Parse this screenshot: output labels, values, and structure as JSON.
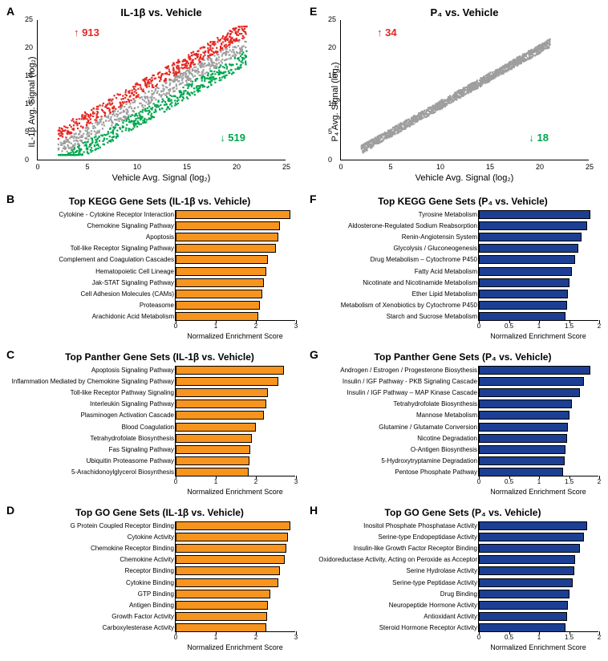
{
  "panels": {
    "A": {
      "letter": "A",
      "title": "IL-1β vs. Vehicle",
      "xlabel": "Vehicle Avg. Signal (log₂)",
      "ylabel": "IL-1β Avg. Signal (log₂)",
      "xlim": [
        0,
        25
      ],
      "ylim": [
        0,
        25
      ],
      "xticks": [
        0,
        5,
        10,
        15,
        20,
        25
      ],
      "yticks": [
        0,
        5,
        10,
        15,
        20,
        25
      ],
      "up_annot": "↑ 913",
      "down_annot": "↓ 519",
      "colors": {
        "up": "#e52620",
        "down": "#00a64f",
        "ns": "#9e9e9e"
      }
    },
    "E": {
      "letter": "E",
      "title": "P₄ vs. Vehicle",
      "xlabel": "Vehicle Avg. Signal (log₂)",
      "ylabel": "P₄ Avg. Signal (log₂)",
      "xlim": [
        0,
        25
      ],
      "ylim": [
        0,
        25
      ],
      "xticks": [
        0,
        5,
        10,
        15,
        20,
        25
      ],
      "yticks": [
        0,
        5,
        10,
        15,
        20,
        25
      ],
      "up_annot": "↑ 34",
      "down_annot": "↓ 18",
      "colors": {
        "up": "#e52620",
        "down": "#00a64f",
        "ns": "#9e9e9e"
      }
    },
    "B": {
      "letter": "B",
      "title": "Top KEGG Gene Sets (IL-1β vs. Vehicle)",
      "xlabel": "Normalized Enrichment Score",
      "xlim": [
        0,
        3
      ],
      "xticks": [
        0,
        1,
        2,
        3
      ],
      "bar_color": "#f7941e",
      "items": [
        {
          "label": "Cytokine - Cytokine Receptor Interaction",
          "v": 2.85
        },
        {
          "label": "Chemokine Signaling Pathway",
          "v": 2.6
        },
        {
          "label": "Apoptosis",
          "v": 2.55
        },
        {
          "label": "Toll-like Receptor Signaling Pathway",
          "v": 2.5
        },
        {
          "label": "Complement and Coagulation Cascades",
          "v": 2.3
        },
        {
          "label": "Hematopoietic Cell Lineage",
          "v": 2.25
        },
        {
          "label": "Jak-STAT Signaling Pathway",
          "v": 2.2
        },
        {
          "label": "Cell Adhesion Molecules (CAMs)",
          "v": 2.15
        },
        {
          "label": "Proteasome",
          "v": 2.1
        },
        {
          "label": "Arachidonic Acid Metabolism",
          "v": 2.05
        }
      ]
    },
    "F": {
      "letter": "F",
      "title": "Top KEGG Gene Sets (P₄ vs. Vehicle)",
      "xlabel": "Normalized Enrichment Score",
      "xlim": [
        0,
        2
      ],
      "xticks": [
        0,
        0.5,
        1.0,
        1.5,
        2.0
      ],
      "bar_color": "#1c3f94",
      "items": [
        {
          "label": "Tyrosine Metabolism",
          "v": 1.85
        },
        {
          "label": "Aldosterone-Regulated Sodium Reabsorption",
          "v": 1.8
        },
        {
          "label": "Renin-Angiotensin System",
          "v": 1.7
        },
        {
          "label": "Glycolysis / Gluconeogenesis",
          "v": 1.65
        },
        {
          "label": "Drug Metabolism – Cytochrome P450",
          "v": 1.6
        },
        {
          "label": "Fatty Acid Metabolism",
          "v": 1.55
        },
        {
          "label": "Nicotinate and Nicotinamide Metabolism",
          "v": 1.5
        },
        {
          "label": "Ether Lipid Metabolism",
          "v": 1.48
        },
        {
          "label": "Metabolism of Xenobiotics by Cytochrome P450",
          "v": 1.46
        },
        {
          "label": "Starch and Sucrose Metabolism",
          "v": 1.44
        }
      ]
    },
    "C": {
      "letter": "C",
      "title": "Top Panther Gene Sets (IL-1β vs. Vehicle)",
      "xlabel": "Normalized Enrichment Score",
      "xlim": [
        0,
        3
      ],
      "xticks": [
        0,
        1,
        2,
        3
      ],
      "bar_color": "#f7941e",
      "items": [
        {
          "label": "Apoptosis Signaling Pathway",
          "v": 2.7
        },
        {
          "label": "Inflammation Mediated by Chemokine Signaling Pathway",
          "v": 2.55
        },
        {
          "label": "Toll-like Receptor Pathway Signaling",
          "v": 2.3
        },
        {
          "label": "Interleukin Signaling Pathway",
          "v": 2.25
        },
        {
          "label": "Plasminogen Activation Cascade",
          "v": 2.2
        },
        {
          "label": "Blood Coagulation",
          "v": 2.0
        },
        {
          "label": "Tetrahydrofolate Biosynthesis",
          "v": 1.9
        },
        {
          "label": "Fas Signaling Pathway",
          "v": 1.85
        },
        {
          "label": "Ubiquitin Proteasome Pathway",
          "v": 1.83
        },
        {
          "label": "5-Arachidonoylglycerol Biosynthesis",
          "v": 1.81
        }
      ]
    },
    "G": {
      "letter": "G",
      "title": "Top Panther Gene Sets (P₄ vs. Vehicle)",
      "xlabel": "Normalized Enrichment Score",
      "xlim": [
        0,
        2
      ],
      "xticks": [
        0,
        0.5,
        1.0,
        1.5,
        2.0
      ],
      "bar_color": "#1c3f94",
      "items": [
        {
          "label": "Androgen / Estrogen / Progesterone Biosythesis",
          "v": 1.85
        },
        {
          "label": "Insulin / IGF Pathway - PKB Signaling Cascade",
          "v": 1.75
        },
        {
          "label": "Insulin / IGF Pathway – MAP Kinase Cascade",
          "v": 1.68
        },
        {
          "label": "Tetrahydrofolate Biosynthesis",
          "v": 1.55
        },
        {
          "label": "Mannose Metabolism",
          "v": 1.5
        },
        {
          "label": "Glutamine / Glutamate Conversion",
          "v": 1.48
        },
        {
          "label": "Nicotine Degradation",
          "v": 1.46
        },
        {
          "label": "O-Antigen Biosynthesis",
          "v": 1.44
        },
        {
          "label": "5-Hydroxytryptamine Degradation",
          "v": 1.42
        },
        {
          "label": "Pentose Phosphate Pathway",
          "v": 1.4
        }
      ]
    },
    "D": {
      "letter": "D",
      "title": "Top GO Gene Sets (IL-1β vs. Vehicle)",
      "xlabel": "Normalized Enrichment Score",
      "xlim": [
        0,
        3
      ],
      "xticks": [
        0,
        1,
        2,
        3
      ],
      "bar_color": "#f7941e",
      "items": [
        {
          "label": "G Protein Coupled Receptor Binding",
          "v": 2.85
        },
        {
          "label": "Cytokine Activity",
          "v": 2.8
        },
        {
          "label": "Chemokine Receptor Binding",
          "v": 2.75
        },
        {
          "label": "Chemokine Activity",
          "v": 2.72
        },
        {
          "label": "Receptor Binding",
          "v": 2.6
        },
        {
          "label": "Cytokine Binding",
          "v": 2.55
        },
        {
          "label": "GTP Binding",
          "v": 2.35
        },
        {
          "label": "Antigen Binding",
          "v": 2.3
        },
        {
          "label": "Growth Factor Activity",
          "v": 2.28
        },
        {
          "label": "Carboxylesterase Activity",
          "v": 2.25
        }
      ]
    },
    "H": {
      "letter": "H",
      "title": "Top GO Gene Sets (P₄ vs. Vehicle)",
      "xlabel": "Normalized Enrichment Score",
      "xlim": [
        0,
        2
      ],
      "xticks": [
        0,
        0.5,
        1.0,
        1.5,
        2.0
      ],
      "bar_color": "#1c3f94",
      "items": [
        {
          "label": "Inositol Phosphate Phosphatase Activity",
          "v": 1.8
        },
        {
          "label": "Serine-type Endopeptidase Activity",
          "v": 1.75
        },
        {
          "label": "Insulin-like Growth Factor Receptor Binding",
          "v": 1.68
        },
        {
          "label": "Oxidoreductase Activity, Acting on Peroxide as Acceptor",
          "v": 1.6
        },
        {
          "label": "Serine Hydrolase Activity",
          "v": 1.58
        },
        {
          "label": "Serine-type Peptidase Activity",
          "v": 1.56
        },
        {
          "label": "Drug Binding",
          "v": 1.5
        },
        {
          "label": "Neuropeptide Hormone Activity",
          "v": 1.48
        },
        {
          "label": "Antioxidant Activity",
          "v": 1.46
        },
        {
          "label": "Steroid Hormone Receptor Activity",
          "v": 1.44
        }
      ]
    }
  },
  "panel_order": [
    "A",
    "E",
    "B",
    "F",
    "C",
    "G",
    "D",
    "H"
  ]
}
